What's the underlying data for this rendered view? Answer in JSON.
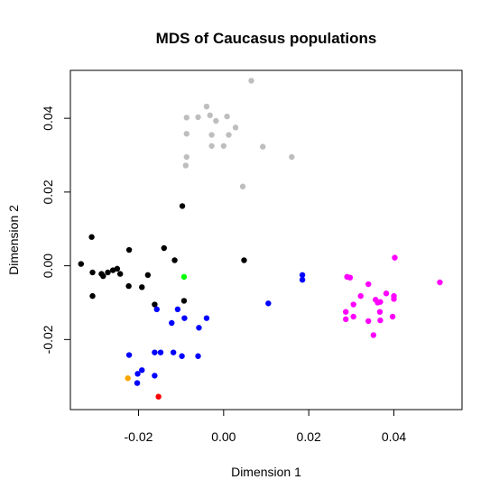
{
  "chart_data": {
    "type": "scatter",
    "title": "MDS of Caucasus populations",
    "xlabel": "Dimension 1",
    "ylabel": "Dimension 2",
    "xlim": [
      -0.036,
      0.056
    ],
    "ylim": [
      -0.039,
      0.053
    ],
    "x_ticks": [
      {
        "value": -0.02,
        "label": "-0.02"
      },
      {
        "value": 0.0,
        "label": "0.00"
      },
      {
        "value": 0.02,
        "label": "0.02"
      },
      {
        "value": 0.04,
        "label": "0.04"
      }
    ],
    "y_ticks": [
      {
        "value": -0.02,
        "label": "-0.02"
      },
      {
        "value": 0.0,
        "label": "0.00"
      },
      {
        "value": 0.02,
        "label": "0.02"
      },
      {
        "value": 0.04,
        "label": "0.04"
      }
    ],
    "grid": false,
    "series": [
      {
        "color": "#bebebe",
        "points": [
          [
            0.0065,
            0.0502
          ],
          [
            -0.004,
            0.0432
          ],
          [
            -0.0087,
            0.0402
          ],
          [
            -0.006,
            0.0403
          ],
          [
            -0.0032,
            0.0408
          ],
          [
            -0.0018,
            0.0393
          ],
          [
            0.0008,
            0.0405
          ],
          [
            0.0028,
            0.0375
          ],
          [
            -0.0087,
            0.0358
          ],
          [
            -0.0028,
            0.0355
          ],
          [
            0.0012,
            0.0355
          ],
          [
            0.0,
            0.0325
          ],
          [
            -0.0028,
            0.0325
          ],
          [
            0.0092,
            0.0323
          ],
          [
            0.016,
            0.0295
          ],
          [
            -0.0087,
            0.0295
          ],
          [
            -0.0089,
            0.0272
          ],
          [
            0.0045,
            0.0215
          ]
        ]
      },
      {
        "color": "#000000",
        "points": [
          [
            -0.0097,
            0.0162
          ],
          [
            -0.031,
            0.0078
          ],
          [
            -0.014,
            0.0048
          ],
          [
            -0.0222,
            0.0043
          ],
          [
            -0.0115,
            0.0015
          ],
          [
            0.0048,
            0.0015
          ],
          [
            -0.0335,
            0.0005
          ],
          [
            -0.025,
            -0.0008
          ],
          [
            -0.026,
            -0.0012
          ],
          [
            -0.0308,
            -0.0018
          ],
          [
            -0.0272,
            -0.0018
          ],
          [
            -0.0287,
            -0.0022
          ],
          [
            -0.0243,
            -0.0022
          ],
          [
            -0.0283,
            -0.0028
          ],
          [
            -0.0178,
            -0.0025
          ],
          [
            -0.0223,
            -0.0055
          ],
          [
            -0.0192,
            -0.0058
          ],
          [
            -0.0308,
            -0.0082
          ],
          [
            -0.0093,
            -0.0095
          ],
          [
            -0.0162,
            -0.0105
          ]
        ]
      },
      {
        "color": "#00ff00",
        "points": [
          [
            -0.0093,
            -0.003
          ]
        ]
      },
      {
        "color": "#0000ff",
        "points": [
          [
            0.0185,
            -0.0025
          ],
          [
            0.0185,
            -0.0038
          ],
          [
            0.0105,
            -0.0102
          ],
          [
            -0.0157,
            -0.0118
          ],
          [
            -0.0108,
            -0.0118
          ],
          [
            -0.004,
            -0.0142
          ],
          [
            -0.0092,
            -0.0142
          ],
          [
            -0.0122,
            -0.0155
          ],
          [
            -0.0058,
            -0.0168
          ],
          [
            -0.0162,
            -0.0235
          ],
          [
            -0.0222,
            -0.0242
          ],
          [
            -0.0148,
            -0.0235
          ],
          [
            -0.0118,
            -0.0235
          ],
          [
            -0.0098,
            -0.0245
          ],
          [
            -0.006,
            -0.0245
          ],
          [
            -0.0192,
            -0.0283
          ],
          [
            -0.0202,
            -0.0293
          ],
          [
            -0.0162,
            -0.0298
          ],
          [
            -0.0203,
            -0.0318
          ]
        ]
      },
      {
        "color": "#ffa500",
        "points": [
          [
            -0.0225,
            -0.0305
          ]
        ]
      },
      {
        "color": "#ff0000",
        "points": [
          [
            -0.0153,
            -0.0355
          ]
        ]
      },
      {
        "color": "#ff00ff",
        "points": [
          [
            0.0402,
            0.0022
          ],
          [
            0.029,
            -0.003
          ],
          [
            0.0297,
            -0.0032
          ],
          [
            0.0508,
            -0.0045
          ],
          [
            0.034,
            -0.005
          ],
          [
            0.0382,
            -0.0075
          ],
          [
            0.0322,
            -0.0082
          ],
          [
            0.04,
            -0.0082
          ],
          [
            0.04,
            -0.009
          ],
          [
            0.0357,
            -0.0092
          ],
          [
            0.0368,
            -0.0098
          ],
          [
            0.0362,
            -0.01
          ],
          [
            0.0305,
            -0.0105
          ],
          [
            0.0287,
            -0.0125
          ],
          [
            0.0367,
            -0.0125
          ],
          [
            0.0305,
            -0.0138
          ],
          [
            0.0397,
            -0.0138
          ],
          [
            0.0287,
            -0.0145
          ],
          [
            0.0368,
            -0.0148
          ],
          [
            0.034,
            -0.015
          ],
          [
            0.0352,
            -0.0188
          ]
        ]
      }
    ]
  }
}
